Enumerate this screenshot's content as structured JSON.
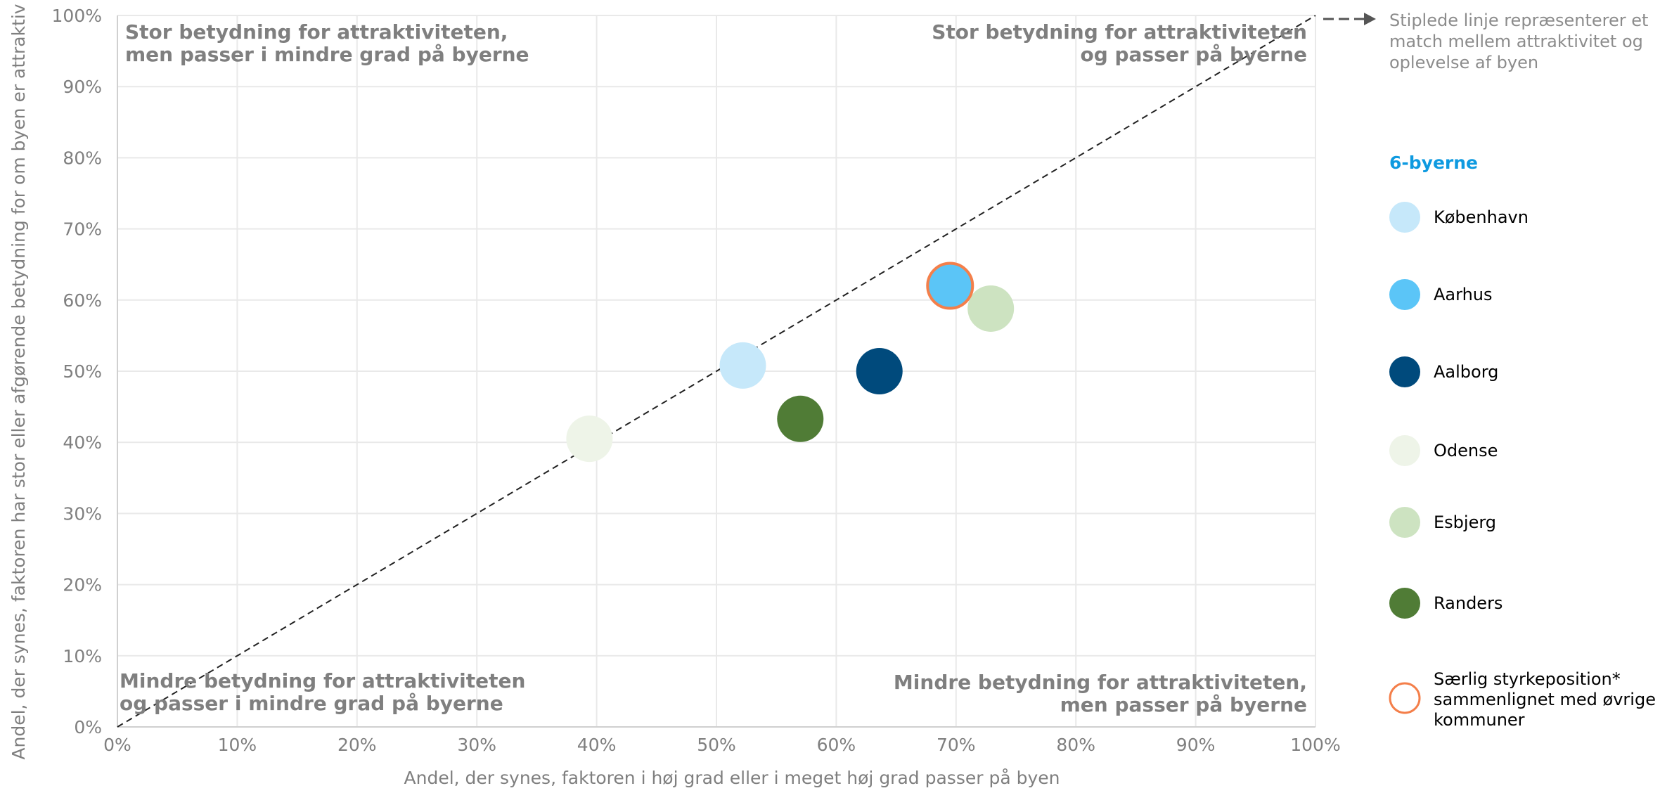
{
  "chart_data": {
    "type": "scatter",
    "xlabel": "Andel, der synes, faktoren i høj grad eller i meget høj grad passer på byen",
    "ylabel": "Andel, der synes, faktoren har stor eller afgørende betydning for om byen er attraktiv",
    "xlim": [
      0,
      100
    ],
    "ylim": [
      0,
      100
    ],
    "x_ticks": [
      "0%",
      "10%",
      "20%",
      "30%",
      "40%",
      "50%",
      "60%",
      "70%",
      "80%",
      "90%",
      "100%"
    ],
    "y_ticks": [
      "0%",
      "10%",
      "20%",
      "30%",
      "40%",
      "50%",
      "60%",
      "70%",
      "80%",
      "90%",
      "100%"
    ],
    "grid": true,
    "quadrants": {
      "top_left": [
        "Stor betydning for attraktiviteten,",
        "men passer i mindre grad på byerne"
      ],
      "top_right": [
        "Stor betydning for attraktiviteten",
        "og passer på byerne"
      ],
      "bottom_left": [
        "Mindre betydning for attraktiviteten",
        "og passer i mindre grad på byerne"
      ],
      "bottom_right": [
        "Mindre betydning for attraktiviteten,",
        "men passer på byerne"
      ]
    },
    "diagonal_note": [
      "Stiplede linje repræsenterer et",
      "match mellem attraktivitet og",
      "oplevelse af byen"
    ],
    "legend_title": "6-byerne",
    "legend_placement": "right",
    "series": [
      {
        "name": "København",
        "color": "#c6e8fa",
        "x": 52.2,
        "y": 50.8
      },
      {
        "name": "Aarhus",
        "color": "#5bc5f7",
        "x": 69.5,
        "y": 62.0,
        "highlight": true
      },
      {
        "name": "Aalborg",
        "color": "#004a7c",
        "x": 63.6,
        "y": 50.0
      },
      {
        "name": "Odense",
        "color": "#eef4e8",
        "x": 39.4,
        "y": 40.5
      },
      {
        "name": "Esbjerg",
        "color": "#cde3c1",
        "x": 72.9,
        "y": 58.8
      },
      {
        "name": "Randers",
        "color": "#507c36",
        "x": 57.0,
        "y": 43.3
      }
    ],
    "highlight_legend": [
      "Særlig styrkeposition*",
      "sammenlignet med øvrige",
      "kommuner"
    ],
    "highlight_color": "#f47f4a",
    "diagonal": {
      "from": [
        0,
        0
      ],
      "to": [
        100,
        100
      ],
      "style": "dashed"
    }
  }
}
